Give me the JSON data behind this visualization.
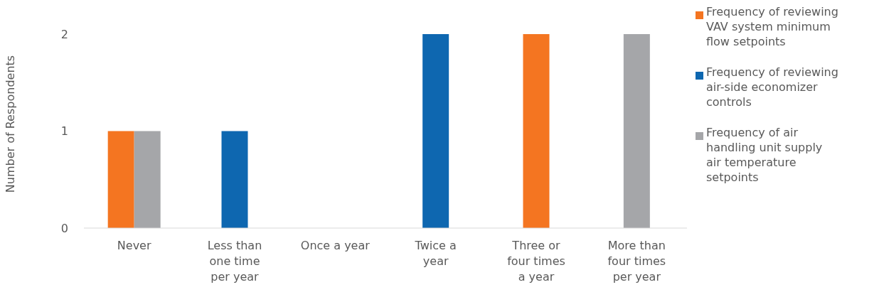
{
  "chart_data": {
    "type": "bar",
    "ylabel": "Number of Respondents",
    "categories": [
      "Never",
      "Less than one time per year",
      "Once a year",
      "Twice a year",
      "Three or four times a year",
      "More than four times per year"
    ],
    "series": [
      {
        "name": "Frequency of reviewing VAV system minimum flow setpoints",
        "color": "#f47521",
        "values": [
          1,
          null,
          null,
          null,
          2,
          null
        ]
      },
      {
        "name": "Frequency of reviewing air-side economizer controls",
        "color": "#0e67b0",
        "values": [
          null,
          1,
          null,
          2,
          null,
          null
        ]
      },
      {
        "name": "Frequency of air handling unit supply air temperature setpoints",
        "color": "#a5a6a9",
        "values": [
          1,
          null,
          null,
          null,
          null,
          2
        ]
      }
    ],
    "ylim": [
      0,
      2
    ],
    "yticks": [
      0,
      1,
      2
    ],
    "grid": false,
    "legend": "right"
  }
}
